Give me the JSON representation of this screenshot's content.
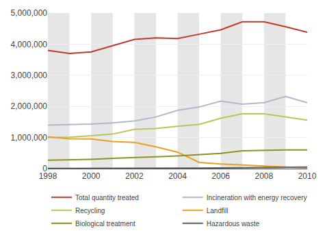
{
  "chart_data": {
    "type": "line",
    "x": [
      1998,
      1999,
      2000,
      2001,
      2002,
      2003,
      2004,
      2005,
      2006,
      2007,
      2008,
      2009,
      2010
    ],
    "series": [
      {
        "name": "Total quantity treated",
        "color": "#c0392b",
        "values": [
          3800000,
          3700000,
          3750000,
          3950000,
          4150000,
          4200000,
          4180000,
          4320000,
          4460000,
          4720000,
          4720000,
          4560000,
          4380000
        ]
      },
      {
        "name": "Incineration with energy recovery",
        "color": "#b0b8cc",
        "values": [
          1400000,
          1410000,
          1430000,
          1470000,
          1530000,
          1660000,
          1870000,
          1980000,
          2170000,
          2070000,
          2120000,
          2320000,
          2120000
        ]
      },
      {
        "name": "Recycling",
        "color": "#bcc45a",
        "values": [
          1000000,
          1010000,
          1060000,
          1110000,
          1260000,
          1290000,
          1360000,
          1420000,
          1620000,
          1760000,
          1760000,
          1660000,
          1560000
        ]
      },
      {
        "name": "Landfill",
        "color": "#e8a020",
        "values": [
          1020000,
          960000,
          950000,
          870000,
          840000,
          700000,
          530000,
          200000,
          150000,
          110000,
          80000,
          50000,
          30000
        ]
      },
      {
        "name": "Biological treatment",
        "color": "#909020",
        "values": [
          270000,
          280000,
          300000,
          330000,
          350000,
          380000,
          410000,
          450000,
          490000,
          570000,
          590000,
          600000,
          600000
        ]
      },
      {
        "name": "Hazardous waste",
        "color": "#606060",
        "values": [
          5000,
          5000,
          8000,
          10000,
          12000,
          14000,
          16000,
          18000,
          22000,
          28000,
          32000,
          38000,
          48000
        ]
      }
    ],
    "xlim": [
      1998,
      2010
    ],
    "xticks": [
      1998,
      2000,
      2002,
      2004,
      2006,
      2008,
      2010
    ],
    "ylim": [
      0,
      5000000
    ],
    "yticks": [
      0,
      {
        "value": 1000000,
        "label": "1,000,000"
      },
      {
        "value": 2000000,
        "label": "2,000,000"
      },
      {
        "value": 3000000,
        "label": "3,000,000"
      },
      {
        "value": 4000000,
        "label": "4,000,000"
      },
      {
        "value": 5000000,
        "label": "5,000,000"
      }
    ],
    "grid": "y",
    "legend": "bottom"
  }
}
